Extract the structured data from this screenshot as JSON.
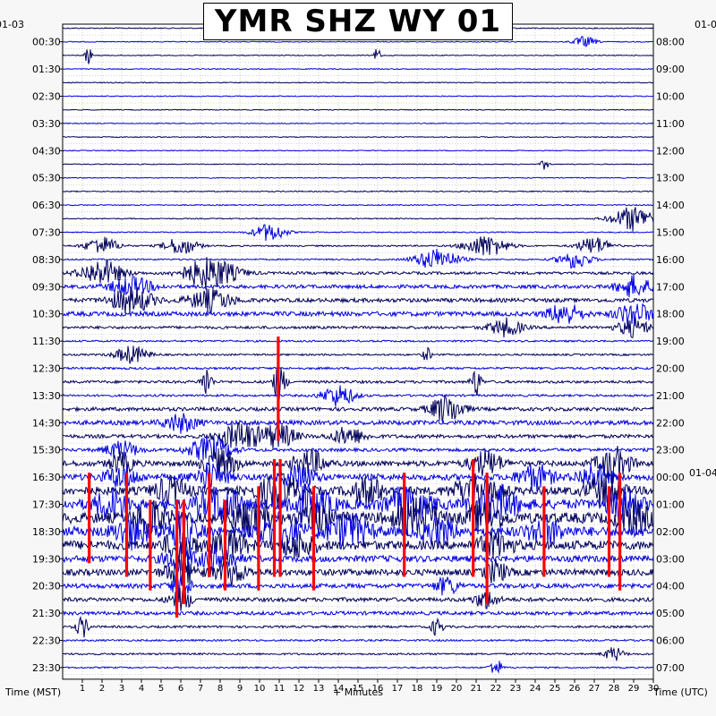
{
  "chart_data": {
    "type": "line",
    "title": "YMR SHZ WY 01",
    "xlabel": "+ Minutes",
    "ylabel_left": "Time (MST)",
    "ylabel_right": "Time (UTC)",
    "xlim": [
      0,
      30
    ],
    "x_ticks": [
      "1",
      "2",
      "3",
      "4",
      "5",
      "6",
      "7",
      "8",
      "9",
      "10",
      "11",
      "12",
      "13",
      "14",
      "15",
      "16",
      "17",
      "18",
      "19",
      "20",
      "21",
      "22",
      "23",
      "24",
      "25",
      "26",
      "27",
      "28",
      "29",
      "30"
    ],
    "left_date": "01-03",
    "right_date_top": "01-0",
    "right_date_change": "01-04",
    "left_hour_labels": [
      "00:30",
      "01:30",
      "02:30",
      "03:30",
      "04:30",
      "05:30",
      "06:30",
      "07:30",
      "08:30",
      "09:30",
      "10:30",
      "11:30",
      "12:30",
      "13:30",
      "14:30",
      "15:30",
      "16:30",
      "17:30",
      "18:30",
      "19:30",
      "20:30",
      "21:30",
      "22:30",
      "23:30"
    ],
    "right_hour_labels": [
      "08:00",
      "09:00",
      "10:00",
      "11:00",
      "12:00",
      "13:00",
      "14:00",
      "15:00",
      "16:00",
      "17:00",
      "18:00",
      "19:00",
      "20:00",
      "21:00",
      "22:00",
      "23:00",
      "00:00",
      "01:00",
      "02:00",
      "03:00",
      "04:00",
      "05:00",
      "06:00",
      "07:00"
    ],
    "trace_interval_minutes": 30,
    "trace_count": 48,
    "grid": true,
    "colors": {
      "trace_dark": "#00005a",
      "trace_blue": "#0000e0",
      "clipped": "#ff0000",
      "grid": "#999999",
      "background": "#ffffff",
      "frame": "#000000"
    },
    "noise_level_by_trace": [
      0.6,
      0.5,
      0.5,
      0.5,
      0.5,
      0.5,
      0.5,
      0.5,
      0.5,
      0.5,
      0.5,
      0.5,
      0.6,
      0.6,
      0.6,
      0.6,
      0.8,
      0.8,
      1.5,
      2.0,
      2.2,
      2.5,
      1.5,
      1.0,
      1.0,
      1.2,
      1.5,
      1.2,
      2.0,
      2.5,
      2.0,
      1.8,
      3.0,
      3.5,
      4.5,
      5.5,
      6.0,
      5.5,
      5.0,
      3.5,
      3.5,
      2.5,
      2.2,
      2.0,
      1.2,
      1.0,
      1.0,
      0.8
    ],
    "events": [
      {
        "trace": 1,
        "minute": 26.5,
        "amplitude": 6,
        "duration_min": 1.0
      },
      {
        "trace": 2,
        "minute": 1.3,
        "amplitude": 12,
        "duration_min": 0.2
      },
      {
        "trace": 2,
        "minute": 16.0,
        "amplitude": 10,
        "duration_min": 0.2
      },
      {
        "trace": 10,
        "minute": 24.5,
        "amplitude": 6,
        "duration_min": 0.3
      },
      {
        "trace": 14,
        "minute": 29.0,
        "amplitude": 14,
        "duration_min": 2.0
      },
      {
        "trace": 15,
        "minute": 10.5,
        "amplitude": 10,
        "duration_min": 1.5
      },
      {
        "trace": 16,
        "minute": 2.0,
        "amplitude": 10,
        "duration_min": 1.5
      },
      {
        "trace": 16,
        "minute": 6.0,
        "amplitude": 10,
        "duration_min": 1.5
      },
      {
        "trace": 16,
        "minute": 21.5,
        "amplitude": 12,
        "duration_min": 2.0
      },
      {
        "trace": 16,
        "minute": 27.0,
        "amplitude": 10,
        "duration_min": 1.5
      },
      {
        "trace": 17,
        "minute": 19.0,
        "amplitude": 12,
        "duration_min": 2.0
      },
      {
        "trace": 17,
        "minute": 26.0,
        "amplitude": 10,
        "duration_min": 1.5
      },
      {
        "trace": 18,
        "minute": 2.0,
        "amplitude": 14,
        "duration_min": 2.0
      },
      {
        "trace": 18,
        "minute": 7.5,
        "amplitude": 18,
        "duration_min": 2.5
      },
      {
        "trace": 19,
        "minute": 3.5,
        "amplitude": 10,
        "duration_min": 2.0
      },
      {
        "trace": 19,
        "minute": 29.0,
        "amplitude": 12,
        "duration_min": 1.5
      },
      {
        "trace": 20,
        "minute": 3.5,
        "amplitude": 14,
        "duration_min": 2.0
      },
      {
        "trace": 20,
        "minute": 7.5,
        "amplitude": 12,
        "duration_min": 2.0
      },
      {
        "trace": 21,
        "minute": 25.5,
        "amplitude": 12,
        "duration_min": 1.5
      },
      {
        "trace": 21,
        "minute": 29.0,
        "amplitude": 14,
        "duration_min": 1.5
      },
      {
        "trace": 22,
        "minute": 22.5,
        "amplitude": 10,
        "duration_min": 1.5
      },
      {
        "trace": 22,
        "minute": 29.0,
        "amplitude": 10,
        "duration_min": 1.5
      },
      {
        "trace": 24,
        "minute": 3.5,
        "amplitude": 10,
        "duration_min": 1.5
      },
      {
        "trace": 24,
        "minute": 18.5,
        "amplitude": 8,
        "duration_min": 0.3
      },
      {
        "trace": 26,
        "minute": 7.3,
        "amplitude": 18,
        "duration_min": 0.4
      },
      {
        "trace": 26,
        "minute": 11.0,
        "amplitude": 22,
        "duration_min": 0.5
      },
      {
        "trace": 26,
        "minute": 21.0,
        "amplitude": 16,
        "duration_min": 0.4
      },
      {
        "trace": 27,
        "minute": 14.0,
        "amplitude": 12,
        "duration_min": 1.5
      },
      {
        "trace": 28,
        "minute": 19.5,
        "amplitude": 16,
        "duration_min": 1.5
      },
      {
        "trace": 29,
        "minute": 6.0,
        "amplitude": 10,
        "duration_min": 1.5
      },
      {
        "trace": 30,
        "minute": 9.0,
        "amplitude": 16,
        "duration_min": 2.0
      },
      {
        "trace": 30,
        "minute": 11.0,
        "amplitude": 14,
        "duration_min": 1.5
      },
      {
        "trace": 30,
        "minute": 14.5,
        "amplitude": 10,
        "duration_min": 1.5
      },
      {
        "trace": 31,
        "minute": 3.0,
        "amplitude": 10,
        "duration_min": 1.5
      },
      {
        "trace": 31,
        "minute": 7.5,
        "amplitude": 14,
        "duration_min": 2.0
      },
      {
        "trace": 32,
        "minute": 3.0,
        "amplitude": 12,
        "duration_min": 1.0
      },
      {
        "trace": 32,
        "minute": 8.0,
        "amplitude": 16,
        "duration_min": 1.5
      },
      {
        "trace": 32,
        "minute": 12.5,
        "amplitude": 14,
        "duration_min": 1.5
      },
      {
        "trace": 32,
        "minute": 21.5,
        "amplitude": 14,
        "duration_min": 1.5
      },
      {
        "trace": 32,
        "minute": 28.0,
        "amplitude": 18,
        "duration_min": 1.5
      },
      {
        "trace": 33,
        "minute": 3.0,
        "amplitude": 12,
        "duration_min": 1.5
      },
      {
        "trace": 33,
        "minute": 7.5,
        "amplitude": 14,
        "duration_min": 1.5
      },
      {
        "trace": 33,
        "minute": 12.0,
        "amplitude": 12,
        "duration_min": 1.5
      },
      {
        "trace": 33,
        "minute": 24.0,
        "amplitude": 14,
        "duration_min": 1.5
      },
      {
        "trace": 33,
        "minute": 27.0,
        "amplitude": 14,
        "duration_min": 1.5
      },
      {
        "trace": 34,
        "minute": 5.5,
        "amplitude": 14,
        "duration_min": 1.5
      },
      {
        "trace": 34,
        "minute": 11.0,
        "amplitude": 18,
        "duration_min": 2.0
      },
      {
        "trace": 34,
        "minute": 15.5,
        "amplitude": 14,
        "duration_min": 1.5
      },
      {
        "trace": 34,
        "minute": 21.0,
        "amplitude": 18,
        "duration_min": 2.0
      },
      {
        "trace": 34,
        "minute": 27.5,
        "amplitude": 16,
        "duration_min": 1.5
      },
      {
        "trace": 35,
        "minute": 2.5,
        "amplitude": 16,
        "duration_min": 1.5
      },
      {
        "trace": 35,
        "minute": 8.0,
        "amplitude": 18,
        "duration_min": 2.0
      },
      {
        "trace": 35,
        "minute": 12.5,
        "amplitude": 18,
        "duration_min": 2.0
      },
      {
        "trace": 35,
        "minute": 17.5,
        "amplitude": 18,
        "duration_min": 2.0
      },
      {
        "trace": 35,
        "minute": 22.0,
        "amplitude": 18,
        "duration_min": 2.0
      },
      {
        "trace": 35,
        "minute": 28.5,
        "amplitude": 16,
        "duration_min": 1.5
      },
      {
        "trace": 36,
        "minute": 4.5,
        "amplitude": 18,
        "duration_min": 1.5
      },
      {
        "trace": 36,
        "minute": 9.5,
        "amplitude": 18,
        "duration_min": 2.0
      },
      {
        "trace": 36,
        "minute": 13.0,
        "amplitude": 16,
        "duration_min": 1.5
      },
      {
        "trace": 36,
        "minute": 18.0,
        "amplitude": 18,
        "duration_min": 2.0
      },
      {
        "trace": 36,
        "minute": 21.5,
        "amplitude": 16,
        "duration_min": 1.5
      },
      {
        "trace": 36,
        "minute": 29.0,
        "amplitude": 16,
        "duration_min": 1.5
      },
      {
        "trace": 37,
        "minute": 3.5,
        "amplitude": 16,
        "duration_min": 1.5
      },
      {
        "trace": 37,
        "minute": 6.0,
        "amplitude": 18,
        "duration_min": 1.5
      },
      {
        "trace": 37,
        "minute": 11.0,
        "amplitude": 18,
        "duration_min": 2.0
      },
      {
        "trace": 37,
        "minute": 14.5,
        "amplitude": 18,
        "duration_min": 2.0
      },
      {
        "trace": 37,
        "minute": 19.0,
        "amplitude": 14,
        "duration_min": 1.5
      },
      {
        "trace": 37,
        "minute": 24.5,
        "amplitude": 14,
        "duration_min": 1.5
      },
      {
        "trace": 38,
        "minute": 6.0,
        "amplitude": 16,
        "duration_min": 1.5
      },
      {
        "trace": 38,
        "minute": 8.5,
        "amplitude": 16,
        "duration_min": 1.5
      },
      {
        "trace": 38,
        "minute": 12.0,
        "amplitude": 14,
        "duration_min": 1.5
      },
      {
        "trace": 38,
        "minute": 22.0,
        "amplitude": 14,
        "duration_min": 1.5
      },
      {
        "trace": 39,
        "minute": 6.0,
        "amplitude": 14,
        "duration_min": 1.5
      },
      {
        "trace": 39,
        "minute": 8.0,
        "amplitude": 14,
        "duration_min": 1.5
      },
      {
        "trace": 40,
        "minute": 6.0,
        "amplitude": 14,
        "duration_min": 1.5
      },
      {
        "trace": 40,
        "minute": 8.5,
        "amplitude": 12,
        "duration_min": 1.5
      },
      {
        "trace": 40,
        "minute": 22.0,
        "amplitude": 12,
        "duration_min": 1.0
      },
      {
        "trace": 41,
        "minute": 6.0,
        "amplitude": 12,
        "duration_min": 1.0
      },
      {
        "trace": 41,
        "minute": 19.5,
        "amplitude": 10,
        "duration_min": 1.0
      },
      {
        "trace": 42,
        "minute": 6.0,
        "amplitude": 12,
        "duration_min": 1.0
      },
      {
        "trace": 42,
        "minute": 21.5,
        "amplitude": 10,
        "duration_min": 1.0
      },
      {
        "trace": 44,
        "minute": 1.0,
        "amplitude": 12,
        "duration_min": 0.5
      },
      {
        "trace": 44,
        "minute": 19.0,
        "amplitude": 10,
        "duration_min": 0.5
      },
      {
        "trace": 46,
        "minute": 28.0,
        "amplitude": 8,
        "duration_min": 0.8
      },
      {
        "trace": 47,
        "minute": 22.0,
        "amplitude": 10,
        "duration_min": 0.5
      }
    ],
    "clipped_events": [
      {
        "start_trace": 33,
        "end_trace": 39,
        "minute": 1.35
      },
      {
        "start_trace": 33,
        "end_trace": 40,
        "minute": 3.25
      },
      {
        "start_trace": 35,
        "end_trace": 41,
        "minute": 4.45
      },
      {
        "start_trace": 35,
        "end_trace": 43,
        "minute": 5.8
      },
      {
        "start_trace": 35,
        "end_trace": 42,
        "minute": 6.15
      },
      {
        "start_trace": 33,
        "end_trace": 40,
        "minute": 7.45
      },
      {
        "start_trace": 35,
        "end_trace": 41,
        "minute": 8.25
      },
      {
        "start_trace": 34,
        "end_trace": 41,
        "minute": 9.95
      },
      {
        "start_trace": 23,
        "end_trace": 30,
        "minute": 10.95
      },
      {
        "start_trace": 32,
        "end_trace": 40,
        "minute": 10.75
      },
      {
        "start_trace": 32,
        "end_trace": 40,
        "minute": 11.05
      },
      {
        "start_trace": 34,
        "end_trace": 41,
        "minute": 12.75
      },
      {
        "start_trace": 33,
        "end_trace": 40,
        "minute": 17.35
      },
      {
        "start_trace": 32,
        "end_trace": 40,
        "minute": 20.85
      },
      {
        "start_trace": 33,
        "end_trace": 42,
        "minute": 21.55
      },
      {
        "start_trace": 34,
        "end_trace": 40,
        "minute": 24.45
      },
      {
        "start_trace": 34,
        "end_trace": 40,
        "minute": 27.75
      },
      {
        "start_trace": 33,
        "end_trace": 41,
        "minute": 28.3
      }
    ]
  }
}
